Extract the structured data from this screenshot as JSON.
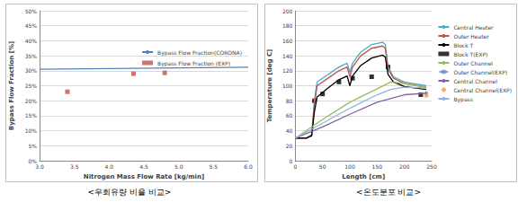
{
  "chart_data": [
    {
      "type": "line",
      "caption": "<우회유량 비율 비교>",
      "x_label": "Nitrogen Mass Flow Rate [kg/min]",
      "y_label": "Bypass Flow Fraction [%]",
      "xlim": [
        3,
        6
      ],
      "xticks": [
        {
          "value": 3,
          "label": "3.0"
        },
        {
          "value": 3.5,
          "label": "3.5"
        },
        {
          "value": 4,
          "label": "4.0"
        },
        {
          "value": 4.5,
          "label": "4.5"
        },
        {
          "value": 5,
          "label": "5.0"
        },
        {
          "value": 5.5,
          "label": "5.5"
        },
        {
          "value": 6,
          "label": "6.0"
        }
      ],
      "ylim": [
        0,
        50
      ],
      "yticks": [
        {
          "value": 0,
          "label": "0%"
        },
        {
          "value": 5,
          "label": "5%"
        },
        {
          "value": 10,
          "label": "10%"
        },
        {
          "value": 15,
          "label": "15%"
        },
        {
          "value": 20,
          "label": "20%"
        },
        {
          "value": 25,
          "label": "25%"
        },
        {
          "value": 30,
          "label": "30%"
        },
        {
          "value": 35,
          "label": "35%"
        },
        {
          "value": 40,
          "label": "40%"
        },
        {
          "value": 45,
          "label": "45%"
        },
        {
          "value": 50,
          "label": "50%"
        }
      ],
      "grid": true,
      "legend": "right",
      "series": [
        {
          "name": "Bypass Flow Fraction(CORONA)",
          "type": "line",
          "marker": "none",
          "color": "#4f81bd",
          "x": [
            3,
            6
          ],
          "values": [
            30.5,
            31.2
          ]
        },
        {
          "name": "Bypass Flow Fraction (EXP)",
          "type": "scatter",
          "marker": "square",
          "color": "#c0504d",
          "x": [
            3.4,
            4.35,
            4.8
          ],
          "values": [
            23,
            29,
            29.3
          ]
        }
      ]
    },
    {
      "type": "line",
      "caption": "<온도분포 비교>",
      "x_label": "Length [cm]",
      "y_label": "Temperature [deg C]",
      "xlim": [
        0,
        250
      ],
      "xticks": [
        0,
        50,
        100,
        150,
        200,
        250
      ],
      "ylim": [
        0,
        200
      ],
      "yticks": [
        0,
        20,
        40,
        60,
        80,
        100,
        120,
        140,
        160,
        180,
        200
      ],
      "grid": true,
      "legend": "right",
      "series": [
        {
          "name": "Central Heater",
          "type": "line",
          "marker": "none",
          "color": "#4bacc6",
          "x": [
            0,
            20,
            30,
            35,
            40,
            60,
            80,
            95,
            100,
            105,
            120,
            140,
            160,
            165,
            170,
            180,
            200,
            240
          ],
          "values": [
            30,
            30,
            35,
            80,
            105,
            115,
            125,
            130,
            118,
            130,
            145,
            155,
            158,
            155,
            125,
            112,
            105,
            100
          ]
        },
        {
          "name": "Outer Heater",
          "type": "line",
          "marker": "none",
          "color": "#c0504d",
          "x": [
            0,
            20,
            30,
            35,
            40,
            60,
            80,
            95,
            100,
            105,
            120,
            140,
            160,
            165,
            170,
            180,
            200,
            240
          ],
          "values": [
            30,
            30,
            34,
            75,
            100,
            110,
            120,
            125,
            112,
            125,
            140,
            150,
            153,
            150,
            122,
            110,
            103,
            98
          ]
        },
        {
          "name": "Block T",
          "type": "line",
          "marker": "none",
          "color": "#000000",
          "x": [
            0,
            20,
            30,
            35,
            40,
            60,
            80,
            95,
            100,
            105,
            120,
            140,
            160,
            165,
            170,
            180,
            200,
            240
          ],
          "values": [
            30,
            30,
            33,
            65,
            85,
            97,
            108,
            113,
            100,
            113,
            127,
            137,
            141,
            138,
            115,
            105,
            99,
            95
          ]
        },
        {
          "name": "Block T(EXP)",
          "type": "scatter",
          "marker": "square",
          "color": "#000000",
          "x": [
            35,
            50,
            80,
            105,
            140,
            170,
            230
          ],
          "values": [
            80,
            89,
            105,
            110,
            112,
            125,
            88
          ]
        },
        {
          "name": "Outer Channel",
          "type": "line",
          "marker": "none",
          "color": "#9bbb59",
          "x": [
            0,
            50,
            100,
            150,
            175,
            200,
            240
          ],
          "values": [
            30,
            55,
            78,
            96,
            105,
            103,
            98
          ]
        },
        {
          "name": "Outer Channel(EXP)",
          "type": "scatter",
          "marker": "diamond",
          "color": "#4f81bd",
          "x": [
            240
          ],
          "values": [
            90
          ]
        },
        {
          "name": "Central Channel",
          "type": "line",
          "marker": "none",
          "color": "#8064a2",
          "x": [
            0,
            50,
            100,
            150,
            200,
            240
          ],
          "values": [
            30,
            45,
            62,
            78,
            88,
            90
          ]
        },
        {
          "name": "Central Channel(EXP)",
          "type": "scatter",
          "marker": "circle",
          "color": "#f79646",
          "x": [
            240
          ],
          "values": [
            87
          ]
        },
        {
          "name": "Bypass",
          "type": "line",
          "marker": "none",
          "color": "#8db3e2",
          "x": [
            0,
            50,
            100,
            150,
            175,
            200,
            240
          ],
          "values": [
            30,
            50,
            70,
            88,
            95,
            98,
            97
          ]
        }
      ]
    }
  ]
}
